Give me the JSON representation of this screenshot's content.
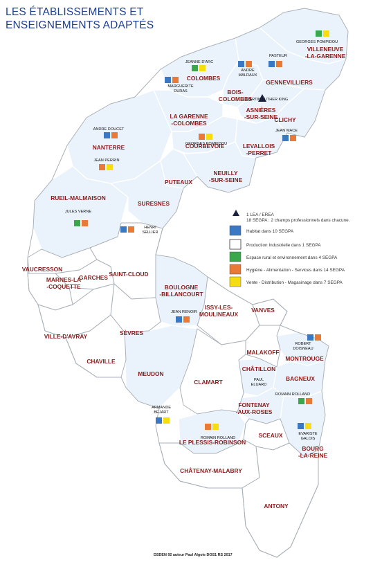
{
  "title": {
    "line1": "LES ÉTABLISSEMENTS ET",
    "line2": "ENSEIGNEMENTS ADAPTÉS"
  },
  "colors": {
    "habitat": "#3a78c4",
    "industrielle": "#ffffff",
    "rural": "#3aa84a",
    "hygiene": "#e87a35",
    "vente": "#f5dd10",
    "title": "#1f3f8f",
    "commune_label": "#8b1c1c"
  },
  "legend": {
    "lea": "1 LEA / EREA",
    "segpa_note": "18 SEGPA : 2 champs professionnels dans chacune.",
    "habitat": "Habitat dans 10 SEGPA",
    "industrielle": "Production Industrielle dans 1 SEGPA",
    "rural": "Espace rural et environnement dans 4 SEGPA",
    "hygiene": "Hygiène - Alimentation - Services dans 14 SEGPA",
    "vente": "Vente - Distribution - Magasinage dans 7 SEGPA"
  },
  "communes": {
    "villeneuve": [
      "VILLENEUVE",
      "-LA-GARENNE"
    ],
    "gennevilliers": [
      "GENNEVILLIERS"
    ],
    "colombes": [
      "COLOMBES"
    ],
    "bois_colombes": [
      "BOIS-",
      "COLOMBES"
    ],
    "asnieres": [
      "ASNIÈRES",
      "-SUR-SEINE"
    ],
    "la_garenne": [
      "LA GARENNE",
      "-COLOMBES"
    ],
    "clichy": [
      "CLICHY"
    ],
    "nanterre": [
      "NANTERRE"
    ],
    "courbevoie": [
      "COURBEVOIE"
    ],
    "levallois": [
      "LEVALLOIS",
      "-PERRET"
    ],
    "neuilly": [
      "NEUILLY",
      "-SUR-SEINE"
    ],
    "puteaux": [
      "PUTEAUX"
    ],
    "rueil": [
      "RUEIL-MALMAISON"
    ],
    "suresnes": [
      "SURESNES"
    ],
    "vaucresson": [
      "VAUCRESSON"
    ],
    "garches": [
      "GARCHES"
    ],
    "saint_cloud": [
      "SAINT-CLOUD"
    ],
    "boulogne": [
      "BOULOGNE",
      "-BILLANCOURT"
    ],
    "marnes": [
      "MARNES-LA",
      "-COQUETTE"
    ],
    "issy": [
      "ISSY-LES-",
      "MOULINEAUX"
    ],
    "vanves": [
      "VANVES"
    ],
    "ville_davray": [
      "VILLE-D'AVRAY"
    ],
    "sevres": [
      "SÈVRES"
    ],
    "malakoff": [
      "MALAKOFF"
    ],
    "montrouge": [
      "MONTROUGE"
    ],
    "chaville": [
      "CHAVILLE"
    ],
    "meudon": [
      "MEUDON"
    ],
    "chatillon": [
      "CHÂTILLON"
    ],
    "clamart": [
      "CLAMART"
    ],
    "bagneux": [
      "BAGNEUX"
    ],
    "fontenay": [
      "FONTENAY",
      "-AUX-ROSES"
    ],
    "sceaux": [
      "SCEAUX"
    ],
    "bourg_la_reine": [
      "BOURG",
      "-LA-REINE"
    ],
    "plessis": [
      "LE PLESSIS-ROBINSON"
    ],
    "chatenay": [
      "CHÂTENAY-MALABRY"
    ],
    "antony": [
      "ANTONY"
    ]
  },
  "schools": {
    "georges_pompidou_v": [
      "GEORGES POMPIDOU"
    ],
    "pasteur": [
      "PASTEUR"
    ],
    "jeanne_darc": [
      "JEANNE D'ARC"
    ],
    "andre_malraux": [
      "ANDRE",
      "MALRAUX"
    ],
    "marguerite_duras": [
      "MARGUERITE",
      "DURAS"
    ],
    "martin_luther_king": [
      "MARTIN LUTHER KING"
    ],
    "jean_mace": [
      "JEAN MACE"
    ],
    "andre_doucet": [
      "ANDRE DOUCET"
    ],
    "georges_pompidou_c": [
      "GEORGES POMPIDOU"
    ],
    "jean_perrin": [
      "JEAN PERRIN"
    ],
    "jules_verne": [
      "JULES VERNE"
    ],
    "henri_sellier": [
      "HENRI",
      "SELLIER"
    ],
    "jean_renoir": [
      "JEAN RENOIR"
    ],
    "robert_doisneau": [
      "ROBERT",
      "DOISNEAU"
    ],
    "paul_eluard": [
      "PAUL",
      "ELUARD"
    ],
    "romain_rolland_b": [
      "ROMAIN ROLLAND"
    ],
    "armande_bejart": [
      "ARMANDE",
      "BEJART"
    ],
    "romain_rolland_p": [
      "ROMAIN ROLLAND"
    ],
    "evariste_galois": [
      "EVARISTE",
      "GALOIS"
    ]
  },
  "credit": "DSDEN 92  auteur Paul Algoie DOS1  RS 2017"
}
